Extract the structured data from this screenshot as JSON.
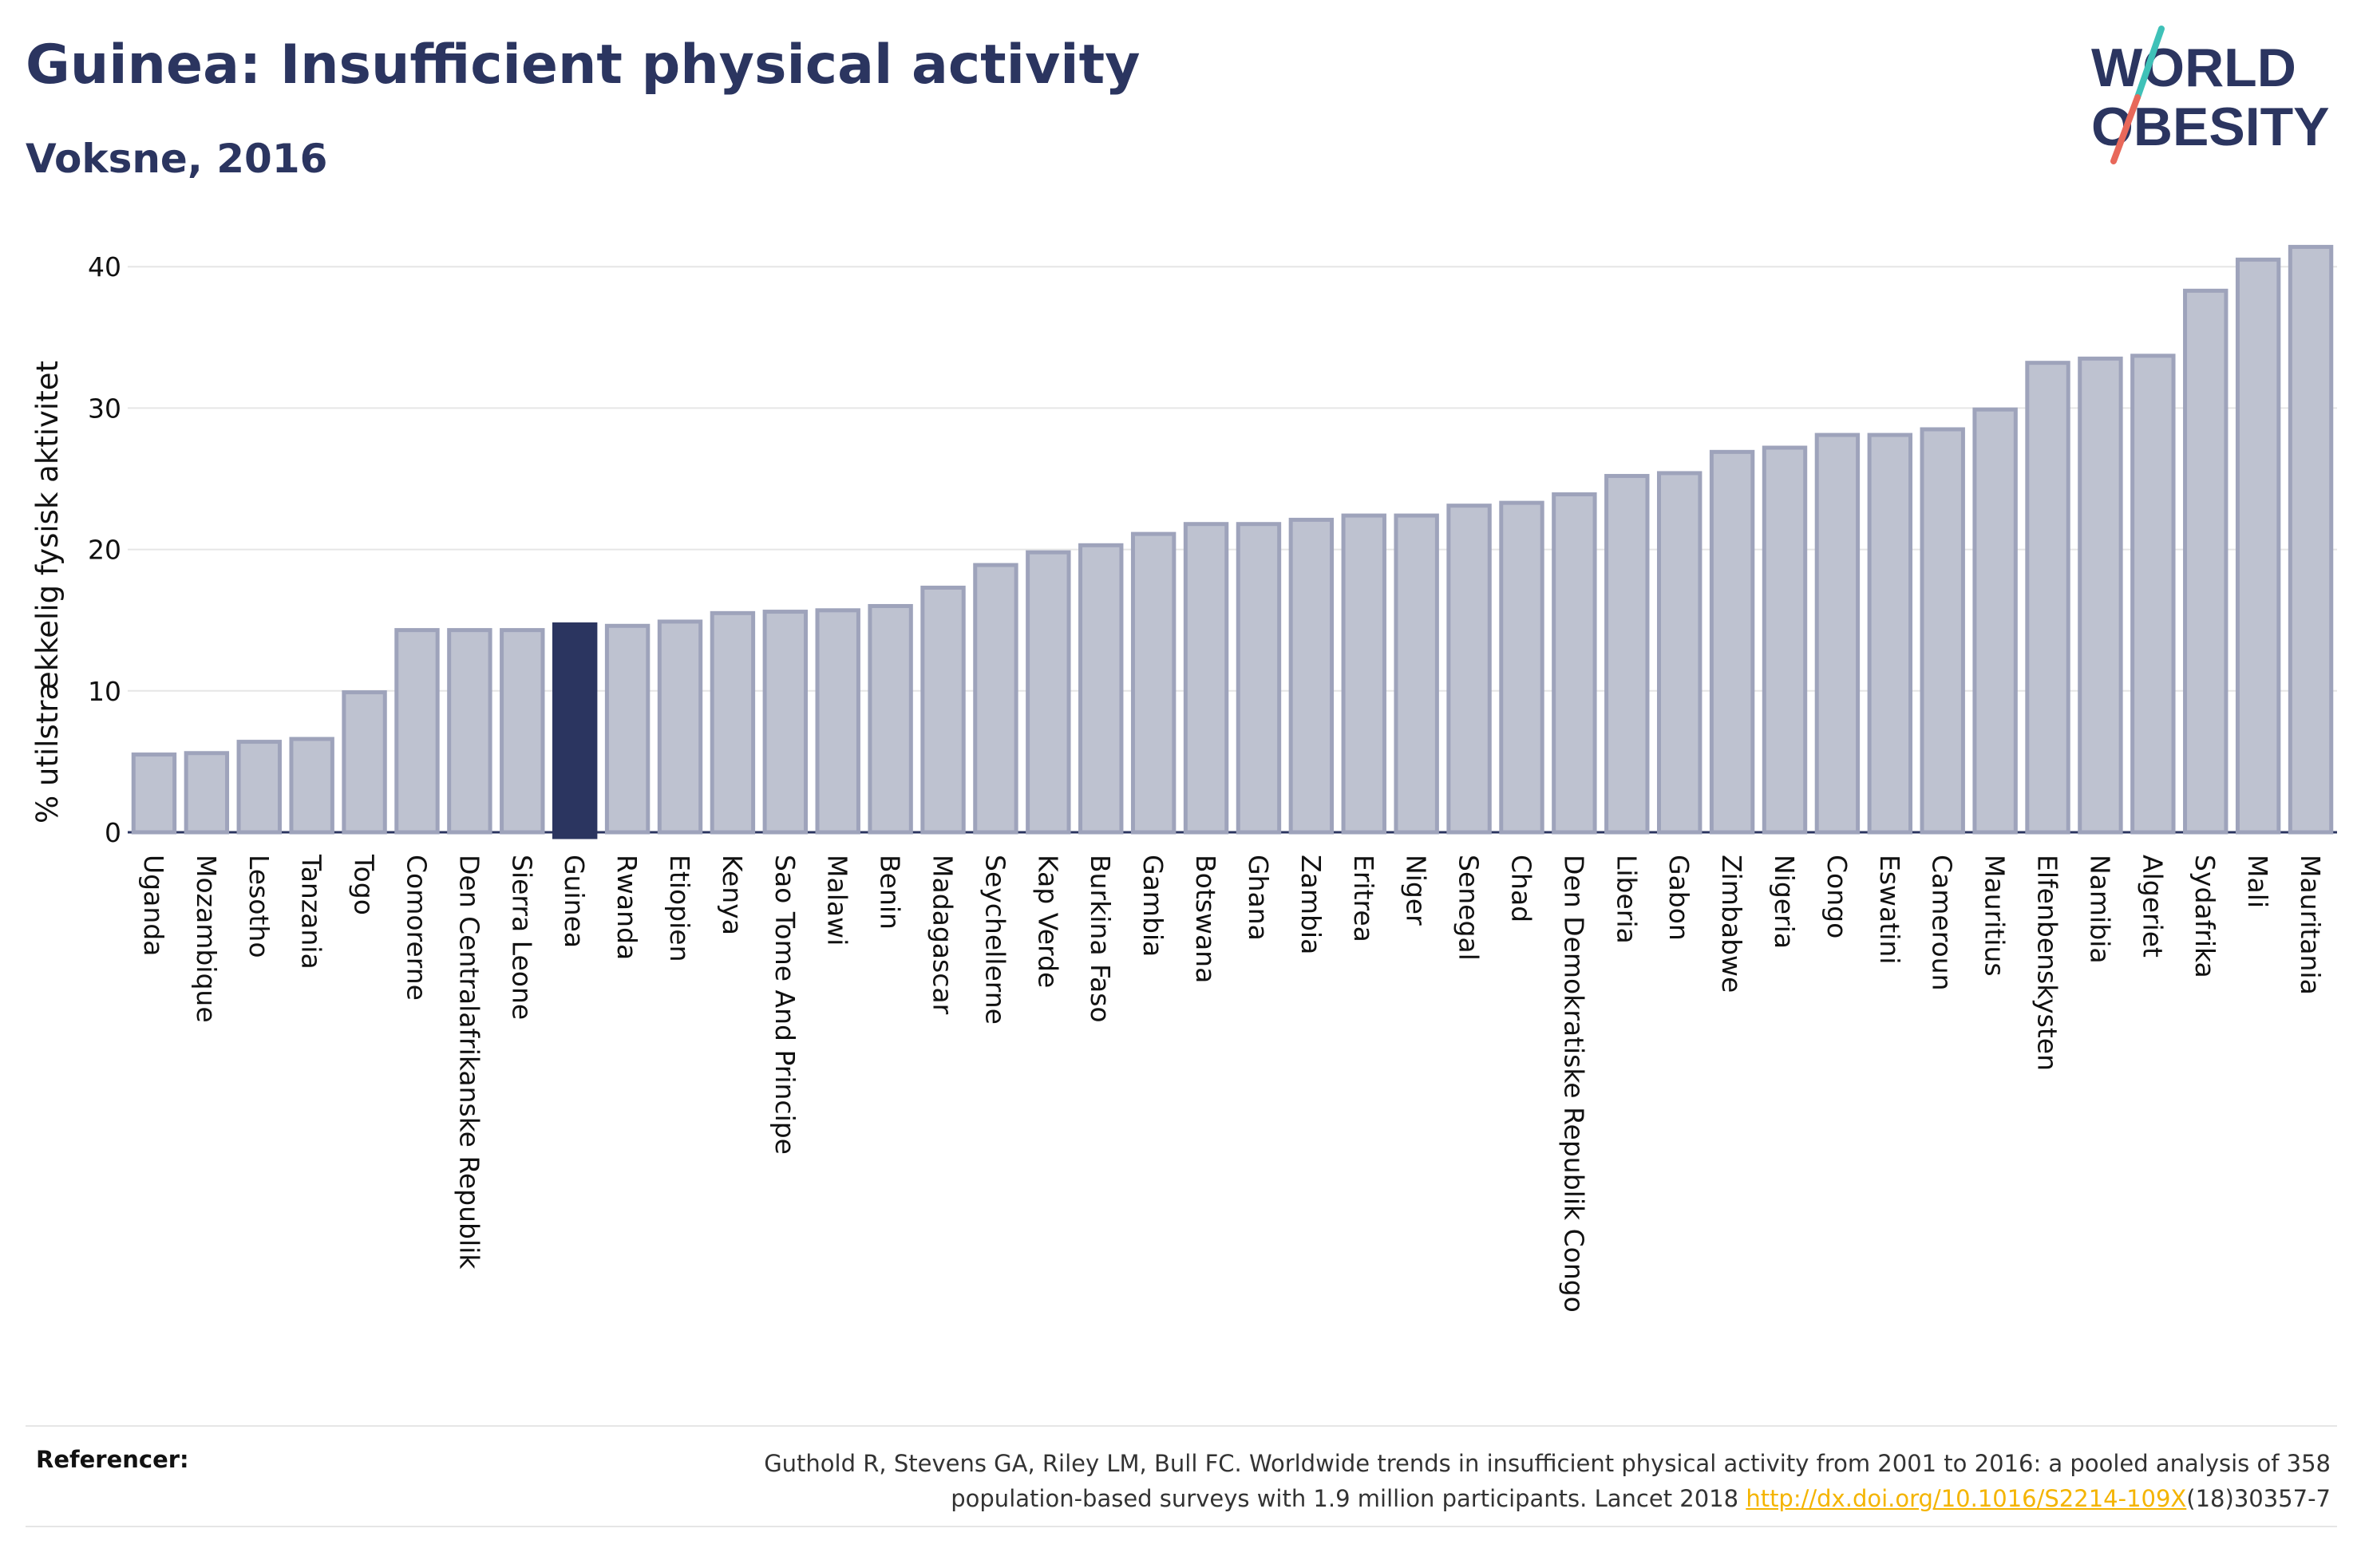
{
  "title": "Guinea: Insufficient physical activity",
  "subtitle": "Voksne, 2016",
  "logo": {
    "line1": "WORLD",
    "line2": "OBESITY",
    "accent_colors": [
      "#3fc1b8",
      "#e8685a"
    ]
  },
  "colors": {
    "highlight": "#2b3560",
    "bar_fill": "#bec2d0",
    "bar_stroke": "#9ea3bb",
    "text": "#2b3560"
  },
  "chart_data": {
    "type": "bar",
    "title": "Guinea: Insufficient physical activity",
    "subtitle": "Voksne, 2016",
    "ylabel": "% utilstrækkelig fysisk aktivitet",
    "xlabel": "",
    "ylim": [
      0,
      43
    ],
    "yticks": [
      0,
      10,
      20,
      30,
      40
    ],
    "grid": true,
    "highlight": "Guinea",
    "categories": [
      "Uganda",
      "Mozambique",
      "Lesotho",
      "Tanzania",
      "Togo",
      "Comorerne",
      "Den Centralafrikanske Republik",
      "Sierra Leone",
      "Guinea",
      "Rwanda",
      "Etiopien",
      "Kenya",
      "Sao Tome And Principe",
      "Malawi",
      "Benin",
      "Madagascar",
      "Seychellerne",
      "Kap Verde",
      "Burkina Faso",
      "Gambia",
      "Botswana",
      "Ghana",
      "Zambia",
      "Eritrea",
      "Niger",
      "Senegal",
      "Chad",
      "Den Demokratiske Republik Congo",
      "Liberia",
      "Gabon",
      "Zimbabwe",
      "Nigeria",
      "Congo",
      "Eswatini",
      "Cameroun",
      "Mauritius",
      "Elfenbenskysten",
      "Namibia",
      "Algeriet",
      "Sydafrika",
      "Mali",
      "Mauritania"
    ],
    "values": [
      5.5,
      5.6,
      6.4,
      6.6,
      9.9,
      14.3,
      14.3,
      14.3,
      14.7,
      14.6,
      14.9,
      15.5,
      15.6,
      15.7,
      16.0,
      17.3,
      18.9,
      19.8,
      20.3,
      21.1,
      21.8,
      21.8,
      22.1,
      22.4,
      22.4,
      23.1,
      23.3,
      23.9,
      25.2,
      25.4,
      26.9,
      27.2,
      28.1,
      28.1,
      28.5,
      29.9,
      33.2,
      33.5,
      33.7,
      38.3,
      40.5,
      41.4
    ]
  },
  "footer": {
    "label": "Referencer:",
    "line1": "Guthold R, Stevens GA, Riley LM, Bull FC. Worldwide trends in insufficient physical activity from 2001 to 2016: a pooled analysis of 358",
    "line2_pre": "population-based surveys with 1.9 million participants. Lancet 2018 ",
    "link": "http://dx.doi.org/10.1016/S2214-109X",
    "line2_post": "(18)30357-7"
  }
}
